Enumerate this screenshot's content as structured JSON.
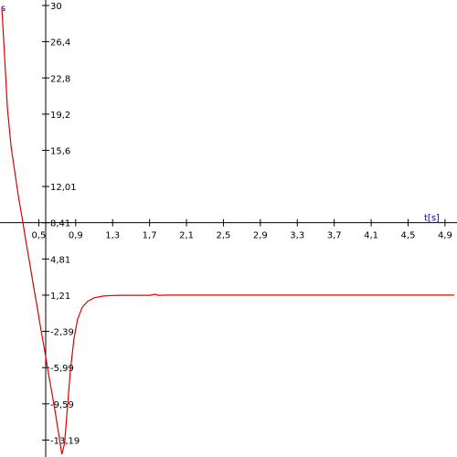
{
  "chart_data": {
    "type": "line",
    "title": "",
    "xlabel": "t[s]",
    "ylabel": "s",
    "xlim": [
      0.1,
      5.0
    ],
    "ylim": [
      -14.6,
      30
    ],
    "grid": false,
    "legend": "none",
    "x_tick_labels": [
      "0,5",
      "0,9",
      "1,3",
      "1,7",
      "2,1",
      "2,5",
      "2,9",
      "3,3",
      "3,7",
      "4,1",
      "4,5",
      "4,9"
    ],
    "x_ticks": [
      0.5,
      0.9,
      1.3,
      1.7,
      2.1,
      2.5,
      2.9,
      3.3,
      3.7,
      4.1,
      4.5,
      4.9
    ],
    "y_tick_labels": [
      "30",
      "26,4",
      "22,8",
      "19,2",
      "15,6",
      "12,01",
      "8,41",
      "4,81",
      "1,21",
      "-2,39",
      "-5,99",
      "-9,59",
      "-13,19"
    ],
    "y_ticks": [
      30,
      26.4,
      22.8,
      19.2,
      15.6,
      12.01,
      8.41,
      4.81,
      1.21,
      -2.39,
      -5.99,
      -9.59,
      -13.19
    ],
    "series": [
      {
        "color": "#dd0000",
        "x": [
          0.1,
          0.13,
          0.16,
          0.2,
          0.24,
          0.28,
          0.32,
          0.36,
          0.4,
          0.44,
          0.48,
          0.52,
          0.56,
          0.6,
          0.64,
          0.68,
          0.72,
          0.75,
          0.78,
          0.81,
          0.84,
          0.88,
          0.92,
          0.97,
          1.03,
          1.1,
          1.2,
          1.3,
          1.45,
          1.6,
          1.7,
          1.76,
          1.8,
          1.9,
          2.5,
          3.5,
          4.5,
          5.0
        ],
        "y": [
          29.8,
          25.0,
          19.8,
          16.0,
          13.5,
          11.0,
          8.9,
          6.6,
          4.5,
          2.3,
          0.2,
          -2.0,
          -4.1,
          -6.3,
          -8.4,
          -10.5,
          -12.8,
          -14.6,
          -13.5,
          -10.0,
          -6.5,
          -3.2,
          -1.2,
          0.0,
          0.6,
          0.95,
          1.12,
          1.18,
          1.2,
          1.2,
          1.2,
          1.3,
          1.2,
          1.21,
          1.21,
          1.21,
          1.21,
          1.21
        ]
      }
    ]
  }
}
